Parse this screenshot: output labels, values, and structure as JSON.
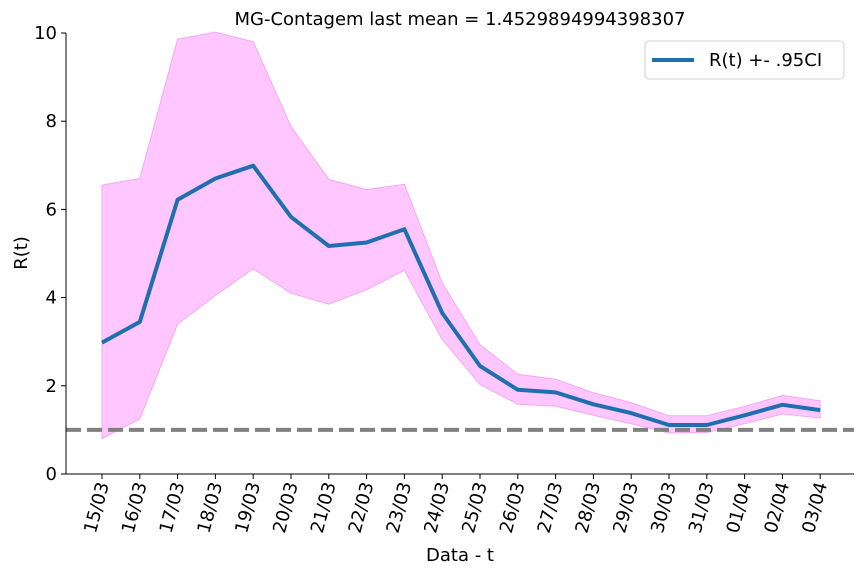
{
  "chart_data": {
    "type": "line",
    "title": "MG-Contagem last mean = 1.4529894994398307",
    "xlabel": "Data - t",
    "ylabel": "R(t)",
    "ylim": [
      0,
      10
    ],
    "yticks": [
      0,
      2,
      4,
      6,
      8,
      10
    ],
    "categories": [
      "15/03",
      "16/03",
      "17/03",
      "18/03",
      "19/03",
      "20/03",
      "21/03",
      "22/03",
      "23/03",
      "24/03",
      "25/03",
      "26/03",
      "27/03",
      "28/03",
      "29/03",
      "30/03",
      "31/03",
      "01/04",
      "02/04",
      "03/04"
    ],
    "series": [
      {
        "name": "R(t) +- .95CI",
        "color": "#1f6fb0",
        "values": [
          2.98,
          3.45,
          6.22,
          6.7,
          6.99,
          5.83,
          5.17,
          5.25,
          5.55,
          3.65,
          2.45,
          1.91,
          1.85,
          1.58,
          1.38,
          1.11,
          1.11,
          1.33,
          1.57,
          1.45
        ],
        "ci_lower": [
          0.8,
          1.25,
          3.4,
          4.05,
          4.65,
          4.1,
          3.85,
          4.18,
          4.62,
          3.05,
          2.03,
          1.58,
          1.54,
          1.33,
          1.14,
          0.93,
          0.94,
          1.14,
          1.36,
          1.27
        ],
        "ci_upper": [
          6.55,
          6.7,
          9.86,
          10.02,
          9.8,
          7.88,
          6.68,
          6.45,
          6.57,
          4.33,
          2.93,
          2.26,
          2.15,
          1.84,
          1.62,
          1.32,
          1.32,
          1.53,
          1.78,
          1.66
        ],
        "ci_color": "#ffc6ff"
      }
    ],
    "reference_line": {
      "value": 1.0,
      "color": "#808080",
      "style": "dashed"
    },
    "legend": {
      "placement": "top-right"
    },
    "grid": false
  }
}
